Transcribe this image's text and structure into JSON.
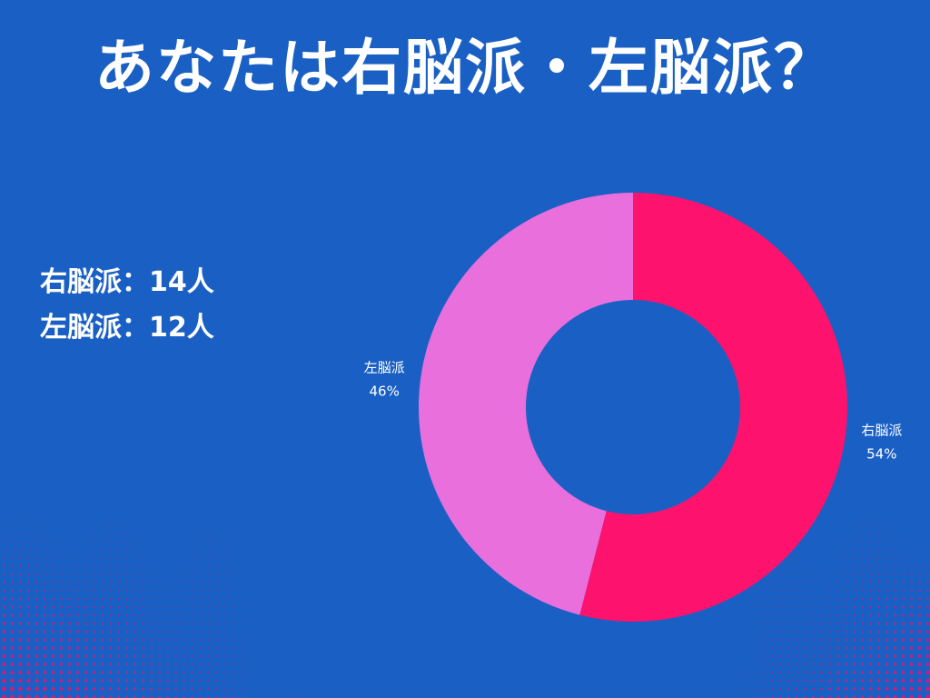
{
  "title": "あなたは右脳派・左脳派？",
  "counts": [
    {
      "label": "右脳派",
      "separator": "：",
      "value": "14人"
    },
    {
      "label": "左脳派",
      "separator": "：",
      "value": "12人"
    }
  ],
  "colors": {
    "background": "#1a60c4",
    "text": "#ffffff",
    "accent_dots": "#e8156e"
  },
  "chart_data": {
    "type": "pie",
    "variant": "donut",
    "categories": [
      "右脳派",
      "左脳派"
    ],
    "values": [
      54,
      46
    ],
    "value_labels": [
      "54%",
      "46%"
    ],
    "colors": [
      "#fd126e",
      "#e86fdc"
    ],
    "start": "12 o'clock",
    "direction": "clockwise",
    "title": ""
  }
}
